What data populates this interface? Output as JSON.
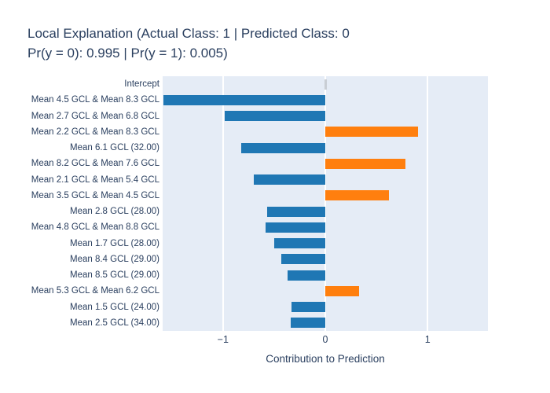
{
  "title": {
    "line1": "Local Explanation (Actual Class: 1 | Predicted Class: 0",
    "line2": "Pr(y = 0): 0.995 | Pr(y = 1): 0.005)"
  },
  "chart_data": {
    "type": "bar",
    "orientation": "horizontal",
    "title": "Local Explanation (Actual Class: 1 | Predicted Class: 0 Pr(y = 0): 0.995 | Pr(y = 1): 0.005)",
    "xlabel": "Contribution to Prediction",
    "ylabel": "",
    "xlim": [
      -1.59,
      1.59
    ],
    "xtick_values": [
      -1,
      0,
      1
    ],
    "xtick_labels": [
      "−1",
      "0",
      "1"
    ],
    "grid": true,
    "legend": false,
    "categories": [
      "Intercept",
      "Mean 4.5 GCL & Mean 8.3 GCL",
      "Mean 2.7 GCL & Mean 6.8 GCL",
      "Mean 2.2 GCL & Mean 8.3 GCL",
      "Mean 6.1 GCL (32.00)",
      "Mean 8.2 GCL & Mean 7.6 GCL",
      "Mean 2.1 GCL & Mean 5.4 GCL",
      "Mean 3.5 GCL & Mean 4.5 GCL",
      "Mean 2.8 GCL (28.00)",
      "Mean 4.8 GCL & Mean 8.8 GCL",
      "Mean 1.7 GCL (28.00)",
      "Mean 8.4 GCL (29.00)",
      "Mean 8.5 GCL (29.00)",
      "Mean 5.3 GCL & Mean 6.2 GCL",
      "Mean 1.5 GCL (24.00)",
      "Mean 2.5 GCL (34.00)"
    ],
    "values": [
      0.01,
      -1.58,
      -0.98,
      0.91,
      -0.82,
      0.78,
      -0.7,
      0.62,
      -0.57,
      -0.58,
      -0.5,
      -0.43,
      -0.37,
      0.33,
      -0.33,
      -0.34
    ],
    "colors": {
      "positive": "#ff7f0e",
      "negative": "#1f77b4",
      "intercept": "#c9ced4",
      "plot_bg": "#e5ecf6",
      "gridline": "#ffffff",
      "text": "#2a3f5f"
    }
  }
}
